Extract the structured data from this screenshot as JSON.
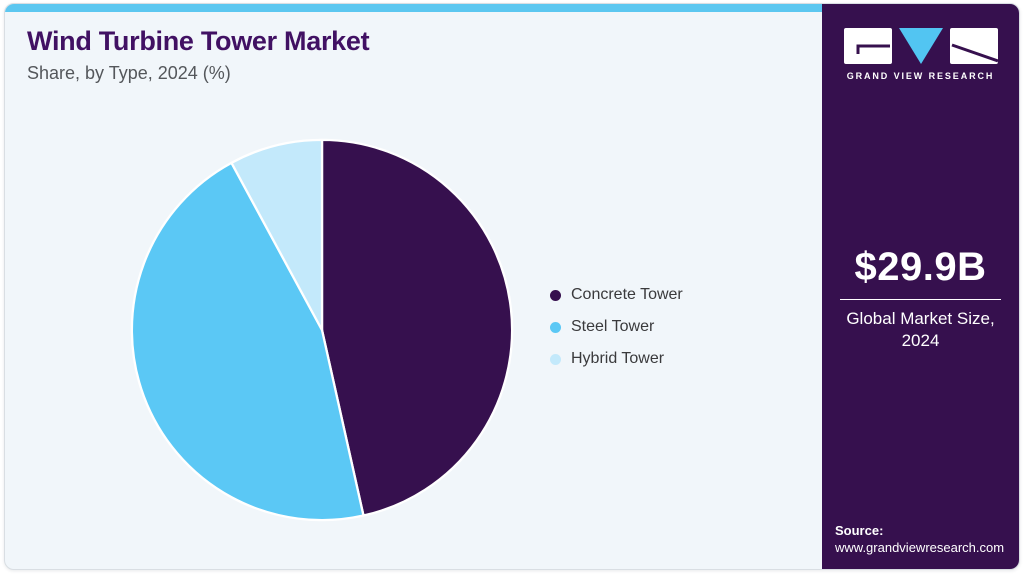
{
  "page": {
    "background": "#FFFFFF",
    "card_background": "#F1F6FA",
    "top_strip_color": "#5CC7F0"
  },
  "header": {
    "title": "Wind Turbine Tower Market",
    "subtitle": "Share, by Type, 2024 (%)",
    "title_color": "#411163"
  },
  "chart_data": {
    "type": "pie",
    "title": "Wind Turbine Tower Market Share, by Type, 2024 (%)",
    "categories": [
      "Concrete Tower",
      "Steel Tower",
      "Hybrid Tower"
    ],
    "values": [
      46.5,
      45.6,
      7.9
    ],
    "unit": "%",
    "colors": [
      "#36104E",
      "#5BC8F5",
      "#C3E9FB"
    ],
    "start_angle_deg": 0,
    "direction": "clockwise",
    "legend_position": "right",
    "slice_separator_color": "#FFFFFF"
  },
  "sidebar": {
    "background": "#36104E",
    "logo_text": "GRAND VIEW RESEARCH",
    "market_size": "$29.9B",
    "market_label": "Global Market Size, 2024",
    "source_label": "Source:",
    "source_url": "www.grandviewresearch.com"
  }
}
